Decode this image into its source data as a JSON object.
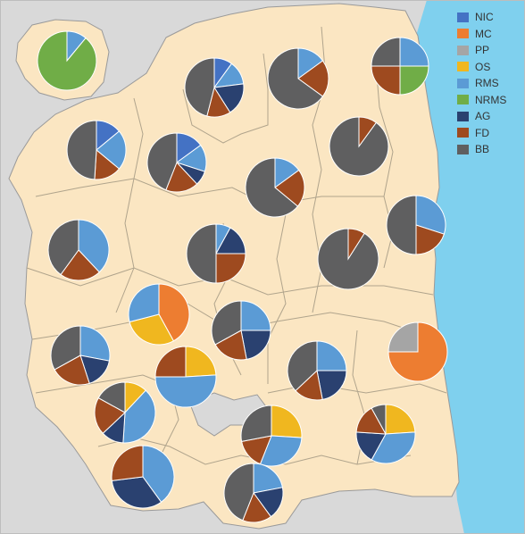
{
  "legend": {
    "placement": "top-right",
    "entries": [
      {
        "key": "NIC",
        "label": "NIC",
        "color": "#4472c4"
      },
      {
        "key": "MC",
        "label": "MC",
        "color": "#ed7d31"
      },
      {
        "key": "PP",
        "label": "PP",
        "color": "#a5a5a5"
      },
      {
        "key": "OS",
        "label": "OS",
        "color": "#f0b71f"
      },
      {
        "key": "RMS",
        "label": "RMS",
        "color": "#5b9bd5"
      },
      {
        "key": "NRMS",
        "label": "NRMS",
        "color": "#70ad47"
      },
      {
        "key": "AG",
        "label": "AG",
        "color": "#2a4170"
      },
      {
        "key": "FD",
        "label": "FD",
        "color": "#9e4a1f"
      },
      {
        "key": "BB",
        "label": "BB",
        "color": "#5f5f60"
      }
    ]
  },
  "colors": {
    "sea": "#7fd0ee",
    "land": "#fbe6c2",
    "outside": "#d9d9d9",
    "borders": "#9a9a9a"
  },
  "chart_data": {
    "type": "pie",
    "description_units": "percent share of each category per district",
    "pies": [
      {
        "id": "island",
        "slices": [
          {
            "key": "RMS",
            "value": 11
          },
          {
            "key": "NRMS",
            "value": 89
          }
        ]
      },
      {
        "id": "north-1",
        "slices": [
          {
            "key": "NIC",
            "value": 10
          },
          {
            "key": "RMS",
            "value": 13
          },
          {
            "key": "AG",
            "value": 18
          },
          {
            "key": "FD",
            "value": 13
          },
          {
            "key": "BB",
            "value": 46
          }
        ]
      },
      {
        "id": "north-2",
        "slices": [
          {
            "key": "RMS",
            "value": 15
          },
          {
            "key": "FD",
            "value": 20
          },
          {
            "key": "BB",
            "value": 65
          }
        ]
      },
      {
        "id": "north-3",
        "slices": [
          {
            "key": "RMS",
            "value": 25
          },
          {
            "key": "NRMS",
            "value": 25
          },
          {
            "key": "FD",
            "value": 25
          },
          {
            "key": "BB",
            "value": 25
          }
        ]
      },
      {
        "id": "northwest",
        "slices": [
          {
            "key": "NIC",
            "value": 14
          },
          {
            "key": "RMS",
            "value": 22
          },
          {
            "key": "FD",
            "value": 15
          },
          {
            "key": "BB",
            "value": 49
          }
        ]
      },
      {
        "id": "center-nw",
        "slices": [
          {
            "key": "NIC",
            "value": 15
          },
          {
            "key": "RMS",
            "value": 15
          },
          {
            "key": "AG",
            "value": 8
          },
          {
            "key": "FD",
            "value": 18
          },
          {
            "key": "BB",
            "value": 44
          }
        ]
      },
      {
        "id": "northeast",
        "slices": [
          {
            "key": "FD",
            "value": 10
          },
          {
            "key": "BB",
            "value": 90
          }
        ]
      },
      {
        "id": "center-n",
        "slices": [
          {
            "key": "RMS",
            "value": 15
          },
          {
            "key": "FD",
            "value": 21
          },
          {
            "key": "BB",
            "value": 64
          }
        ]
      },
      {
        "id": "west",
        "slices": [
          {
            "key": "RMS",
            "value": 38
          },
          {
            "key": "FD",
            "value": 22
          },
          {
            "key": "BB",
            "value": 40
          }
        ]
      },
      {
        "id": "center",
        "slices": [
          {
            "key": "RMS",
            "value": 8
          },
          {
            "key": "AG",
            "value": 17
          },
          {
            "key": "FD",
            "value": 25
          },
          {
            "key": "BB",
            "value": 50
          }
        ]
      },
      {
        "id": "east-center",
        "slices": [
          {
            "key": "FD",
            "value": 9
          },
          {
            "key": "BB",
            "value": 91
          }
        ]
      },
      {
        "id": "east",
        "slices": [
          {
            "key": "RMS",
            "value": 30
          },
          {
            "key": "FD",
            "value": 20
          },
          {
            "key": "BB",
            "value": 50
          }
        ]
      },
      {
        "id": "center-w",
        "slices": [
          {
            "key": "MC",
            "value": 42
          },
          {
            "key": "OS",
            "value": 29
          },
          {
            "key": "RMS",
            "value": 29
          }
        ]
      },
      {
        "id": "center-s",
        "slices": [
          {
            "key": "RMS",
            "value": 25
          },
          {
            "key": "AG",
            "value": 22
          },
          {
            "key": "FD",
            "value": 20
          },
          {
            "key": "BB",
            "value": 33
          }
        ]
      },
      {
        "id": "east-coast",
        "slices": [
          {
            "key": "MC",
            "value": 75
          },
          {
            "key": "PP",
            "value": 25
          }
        ]
      },
      {
        "id": "southwest-1",
        "slices": [
          {
            "key": "RMS",
            "value": 28
          },
          {
            "key": "AG",
            "value": 17
          },
          {
            "key": "FD",
            "value": 22
          },
          {
            "key": "BB",
            "value": 33
          }
        ]
      },
      {
        "id": "south-center",
        "slices": [
          {
            "key": "OS",
            "value": 24
          },
          {
            "key": "RMS",
            "value": 51
          },
          {
            "key": "FD",
            "value": 25
          }
        ]
      },
      {
        "id": "southeast-1",
        "slices": [
          {
            "key": "RMS",
            "value": 25
          },
          {
            "key": "AG",
            "value": 22
          },
          {
            "key": "FD",
            "value": 16
          },
          {
            "key": "BB",
            "value": 37
          }
        ]
      },
      {
        "id": "southwest-2",
        "slices": [
          {
            "key": "OS",
            "value": 12
          },
          {
            "key": "RMS",
            "value": 39
          },
          {
            "key": "AG",
            "value": 12
          },
          {
            "key": "FD",
            "value": 20
          },
          {
            "key": "BB",
            "value": 17
          }
        ]
      },
      {
        "id": "south-1",
        "slices": [
          {
            "key": "OS",
            "value": 26
          },
          {
            "key": "RMS",
            "value": 30
          },
          {
            "key": "FD",
            "value": 16
          },
          {
            "key": "BB",
            "value": 28
          }
        ]
      },
      {
        "id": "southeast-2",
        "slices": [
          {
            "key": "OS",
            "value": 24
          },
          {
            "key": "RMS",
            "value": 34
          },
          {
            "key": "AG",
            "value": 18
          },
          {
            "key": "FD",
            "value": 16
          },
          {
            "key": "BB",
            "value": 8
          }
        ]
      },
      {
        "id": "south-west-3",
        "slices": [
          {
            "key": "RMS",
            "value": 40
          },
          {
            "key": "AG",
            "value": 33
          },
          {
            "key": "FD",
            "value": 27
          }
        ]
      },
      {
        "id": "south-2",
        "slices": [
          {
            "key": "RMS",
            "value": 22
          },
          {
            "key": "AG",
            "value": 18
          },
          {
            "key": "FD",
            "value": 16
          },
          {
            "key": "BB",
            "value": 44
          }
        ]
      }
    ]
  }
}
